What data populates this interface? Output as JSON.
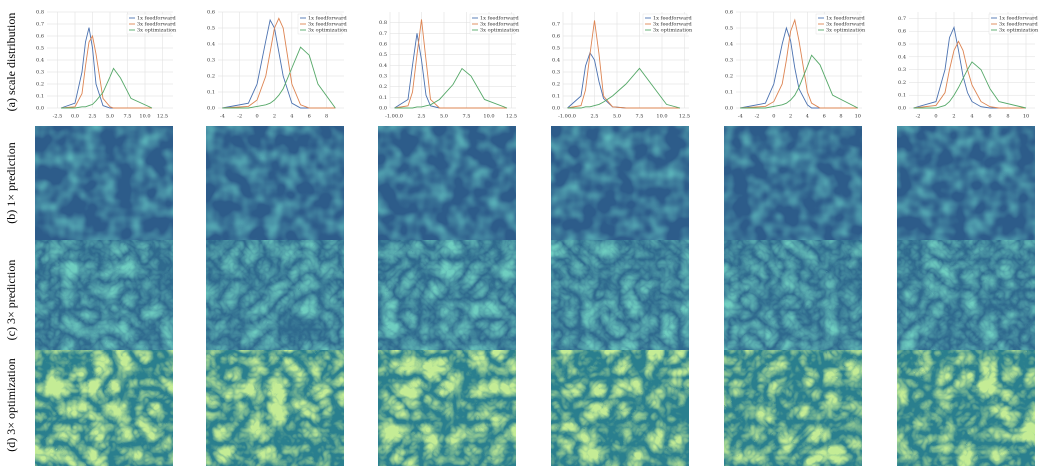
{
  "row_labels": [
    "(a) scale distribution",
    "(b) 1× prediction",
    "(c) 3× prediction",
    "(d) 3× optimization"
  ],
  "chart_data": [
    {
      "type": "line",
      "grid": true,
      "legend": "upper right",
      "x": [
        -2,
        0,
        1,
        1.5,
        2,
        2.5,
        3,
        4,
        5,
        5.5,
        6.5,
        8,
        11
      ],
      "series": [
        {
          "name": "1x feedforward",
          "color": "#4c72b0",
          "values": [
            0,
            0.04,
            0.3,
            0.55,
            0.67,
            0.5,
            0.2,
            0.02,
            0,
            0,
            0,
            0,
            0
          ]
        },
        {
          "name": "3x feedforward",
          "color": "#dd8452",
          "values": [
            0,
            0.01,
            0.12,
            0.35,
            0.55,
            0.6,
            0.45,
            0.08,
            0.01,
            0,
            0,
            0,
            0
          ]
        },
        {
          "name": "3x optimization",
          "color": "#55a868",
          "values": [
            0,
            0,
            0.01,
            0.01,
            0.02,
            0.03,
            0.06,
            0.13,
            0.26,
            0.33,
            0.25,
            0.08,
            0
          ]
        }
      ],
      "xlim": [
        -4,
        14
      ],
      "xticks": [
        -2.5,
        {
          "value": 0,
          "label": "0.0"
        },
        2.5,
        {
          "value": 5,
          "label": "5.0"
        },
        7.5,
        {
          "value": 10,
          "label": "10.0"
        },
        12.5
      ],
      "ylim": [
        0,
        0.8
      ],
      "yticks": [
        {
          "value": 0,
          "label": "0.0"
        },
        0.1,
        0.2,
        0.3,
        0.4,
        0.5,
        0.6,
        0.7,
        0.8
      ]
    },
    {
      "type": "line",
      "grid": true,
      "legend": "upper right",
      "x": [
        -4,
        -1,
        0,
        1,
        1.5,
        2,
        2.5,
        3,
        4,
        5,
        6,
        7,
        9
      ],
      "series": [
        {
          "name": "1x feedforward",
          "color": "#4c72b0",
          "values": [
            0,
            0.03,
            0.15,
            0.42,
            0.55,
            0.5,
            0.35,
            0.2,
            0.03,
            0,
            0,
            0,
            0
          ]
        },
        {
          "name": "3x feedforward",
          "color": "#dd8452",
          "values": [
            0,
            0.01,
            0.05,
            0.2,
            0.35,
            0.5,
            0.56,
            0.5,
            0.15,
            0.02,
            0,
            0,
            0
          ]
        },
        {
          "name": "3x optimization",
          "color": "#55a868",
          "values": [
            0,
            0,
            0.01,
            0.02,
            0.03,
            0.05,
            0.08,
            0.12,
            0.25,
            0.38,
            0.33,
            0.15,
            0
          ]
        }
      ],
      "xlim": [
        -4.5,
        10
      ],
      "xticks": [
        -4,
        -2,
        0,
        2,
        4,
        6,
        8
      ],
      "ylim": [
        0,
        0.6
      ],
      "yticks": [
        {
          "value": 0,
          "label": "0.0"
        },
        0.1,
        0.2,
        0.3,
        0.4,
        0.5,
        0.6
      ]
    },
    {
      "type": "line",
      "grid": true,
      "legend": "upper right",
      "x": [
        -0.5,
        1,
        1.5,
        2,
        2.5,
        3,
        3.5,
        4.5,
        6,
        7,
        8,
        9.5,
        12
      ],
      "series": [
        {
          "name": "1x feedforward",
          "color": "#4c72b0",
          "values": [
            0,
            0.08,
            0.4,
            0.7,
            0.45,
            0.12,
            0.02,
            0,
            0,
            0,
            0,
            0,
            0
          ]
        },
        {
          "name": "3x feedforward",
          "color": "#dd8452",
          "values": [
            0,
            0.02,
            0.15,
            0.5,
            0.83,
            0.45,
            0.08,
            0,
            0,
            0,
            0,
            0,
            0
          ]
        },
        {
          "name": "3x optimization",
          "color": "#55a868",
          "values": [
            0,
            0,
            0,
            0.01,
            0.01,
            0.02,
            0.03,
            0.08,
            0.22,
            0.37,
            0.3,
            0.08,
            0
          ]
        }
      ],
      "xlim": [
        -1,
        13
      ],
      "xticks": [
        {
          "value": -1,
          "label": "-1.0"
        },
        {
          "value": 0,
          "label": "0.0"
        },
        2.5,
        {
          "value": 5,
          "label": "5.0"
        },
        7.5,
        {
          "value": 10,
          "label": "10.0"
        },
        12.5
      ],
      "ylim": [
        0,
        0.9
      ],
      "yticks": [
        {
          "value": 0,
          "label": "0.0"
        },
        0.1,
        0.2,
        0.3,
        0.4,
        0.5,
        0.6,
        0.7,
        0.8
      ]
    },
    {
      "type": "line",
      "grid": true,
      "legend": "upper right",
      "x": [
        -0.5,
        1,
        1.5,
        2,
        2.5,
        3,
        3.5,
        4.5,
        6,
        7.5,
        9,
        10.5,
        12
      ],
      "series": [
        {
          "name": "1x feedforward",
          "color": "#4c72b0",
          "values": [
            0,
            0.1,
            0.35,
            0.46,
            0.4,
            0.22,
            0.08,
            0.01,
            0,
            0,
            0,
            0,
            0
          ]
        },
        {
          "name": "3x feedforward",
          "color": "#dd8452",
          "values": [
            0,
            0.02,
            0.15,
            0.45,
            0.73,
            0.45,
            0.1,
            0.01,
            0,
            0,
            0,
            0,
            0
          ]
        },
        {
          "name": "3x optimization",
          "color": "#55a868",
          "values": [
            0,
            0,
            0.01,
            0.01,
            0.02,
            0.03,
            0.05,
            0.1,
            0.2,
            0.33,
            0.18,
            0.03,
            0
          ]
        }
      ],
      "xlim": [
        -1,
        13
      ],
      "xticks": [
        {
          "value": -1,
          "label": "-1.0"
        },
        {
          "value": 0,
          "label": "0.0"
        },
        2.5,
        {
          "value": 5,
          "label": "5.0"
        },
        7.5,
        {
          "value": 10,
          "label": "10.0"
        },
        12.5
      ],
      "ylim": [
        0,
        0.8
      ],
      "yticks": [
        {
          "value": 0,
          "label": "0.0"
        },
        0.1,
        0.2,
        0.3,
        0.4,
        0.5,
        0.6,
        0.7
      ]
    },
    {
      "type": "line",
      "grid": true,
      "legend": "upper right",
      "x": [
        -4,
        -1,
        0,
        1,
        1.5,
        2,
        2.5,
        3,
        4,
        4.5,
        5.5,
        7,
        10
      ],
      "series": [
        {
          "name": "1x feedforward",
          "color": "#4c72b0",
          "values": [
            0,
            0.03,
            0.15,
            0.4,
            0.5,
            0.42,
            0.25,
            0.12,
            0.02,
            0,
            0,
            0,
            0
          ]
        },
        {
          "name": "3x feedforward",
          "color": "#dd8452",
          "values": [
            0,
            0.01,
            0.04,
            0.15,
            0.3,
            0.48,
            0.55,
            0.42,
            0.1,
            0.03,
            0,
            0,
            0
          ]
        },
        {
          "name": "3x optimization",
          "color": "#55a868",
          "values": [
            0,
            0,
            0.01,
            0.02,
            0.03,
            0.05,
            0.08,
            0.13,
            0.26,
            0.33,
            0.27,
            0.08,
            0
          ]
        }
      ],
      "xlim": [
        -4.5,
        10.5
      ],
      "xticks": [
        -4,
        -2,
        0,
        2,
        4,
        6,
        8,
        10
      ],
      "ylim": [
        0,
        0.6
      ],
      "yticks": [
        {
          "value": 0,
          "label": "0.0"
        },
        0.1,
        0.2,
        0.3,
        0.4,
        0.5,
        0.6
      ]
    },
    {
      "type": "line",
      "grid": true,
      "legend": "upper right",
      "x": [
        -2.5,
        0,
        1,
        1.5,
        2,
        2.5,
        3,
        3.5,
        4,
        5,
        6,
        7,
        10
      ],
      "series": [
        {
          "name": "1x feedforward",
          "color": "#4c72b0",
          "values": [
            0,
            0.05,
            0.3,
            0.55,
            0.63,
            0.45,
            0.25,
            0.12,
            0.05,
            0.01,
            0,
            0,
            0
          ]
        },
        {
          "name": "3x feedforward",
          "color": "#dd8452",
          "values": [
            0,
            0.02,
            0.12,
            0.3,
            0.45,
            0.52,
            0.45,
            0.3,
            0.18,
            0.05,
            0.01,
            0,
            0
          ]
        },
        {
          "name": "3x optimization",
          "color": "#55a868",
          "values": [
            0,
            0,
            0.02,
            0.05,
            0.1,
            0.16,
            0.23,
            0.3,
            0.36,
            0.3,
            0.15,
            0.05,
            0
          ]
        }
      ],
      "xlim": [
        -3,
        11
      ],
      "xticks": [
        -2,
        0,
        2,
        4,
        6,
        8,
        10
      ],
      "ylim": [
        0,
        0.75
      ],
      "yticks": [
        {
          "value": 0,
          "label": "0.0"
        },
        0.1,
        0.2,
        0.3,
        0.4,
        0.5,
        0.6,
        0.7
      ]
    }
  ]
}
